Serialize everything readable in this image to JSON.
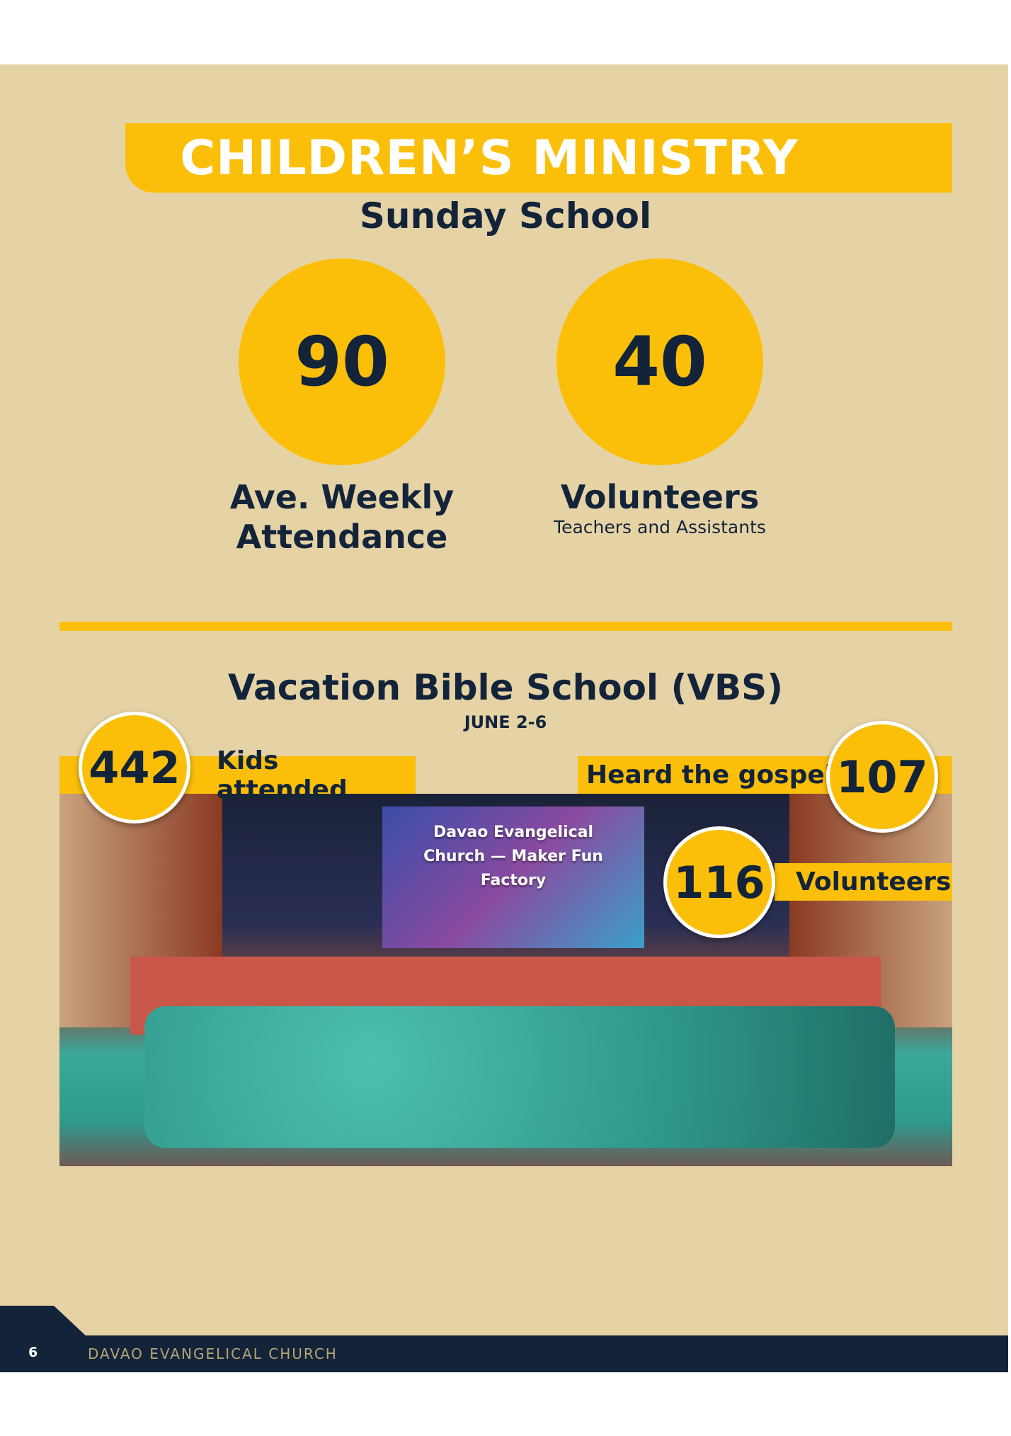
{
  "header": {
    "title": "CHILDREN’S MINISTRY"
  },
  "sunday_school": {
    "heading": "Sunday School",
    "stats": [
      {
        "value": "90",
        "label_line1": "Ave. Weekly",
        "label_line2": "Attendance"
      },
      {
        "value": "40",
        "label_line1": "Volunteers",
        "sublabel": "Teachers and Assistants"
      }
    ]
  },
  "vbs": {
    "heading": "Vacation Bible School (VBS)",
    "dates": "JUNE 2-6",
    "stats": [
      {
        "value": "442",
        "label": "Kids attended"
      },
      {
        "value": "107",
        "label": "Heard the gospel"
      },
      {
        "value": "116",
        "label": "Volunteers"
      }
    ],
    "photo": {
      "screen_text": "Davao Evangelical Church — Maker Fun Factory"
    }
  },
  "footer": {
    "page_number": "6",
    "organization": "DAVAO EVANGELICAL CHURCH"
  },
  "colors": {
    "accent": "#fbbf0a",
    "navy": "#13233a",
    "background": "#e6d3a5"
  }
}
